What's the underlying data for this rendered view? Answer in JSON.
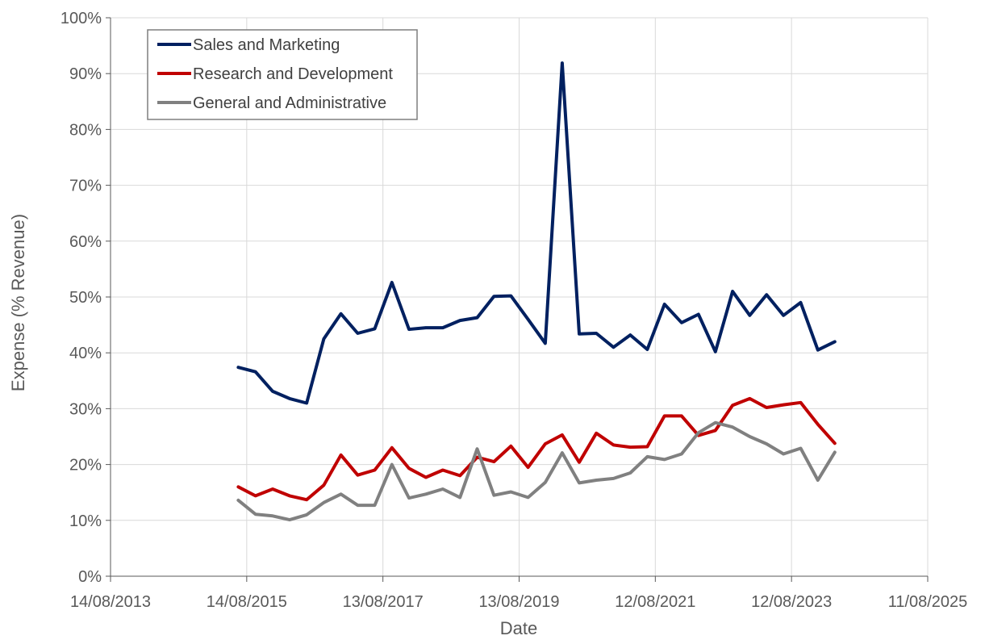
{
  "chart_data": {
    "type": "line",
    "xlabel": "Date",
    "ylabel": "Expense (% Revenue)",
    "xlim": [
      "2013-08-14",
      "2025-08-11"
    ],
    "ylim": [
      0,
      1
    ],
    "x_ticks": [
      "14/08/2013",
      "14/08/2015",
      "13/08/2017",
      "13/08/2019",
      "12/08/2021",
      "12/08/2023",
      "11/08/2025"
    ],
    "y_ticks": [
      "0%",
      "10%",
      "20%",
      "30%",
      "40%",
      "50%",
      "60%",
      "70%",
      "80%",
      "90%",
      "100%"
    ],
    "grid": true,
    "legend_position": "top-left",
    "x": [
      "2015-06-30",
      "2015-09-30",
      "2015-12-31",
      "2016-03-31",
      "2016-06-30",
      "2016-09-30",
      "2016-12-31",
      "2017-03-31",
      "2017-06-30",
      "2017-09-30",
      "2017-12-31",
      "2018-03-31",
      "2018-06-30",
      "2018-09-30",
      "2018-12-31",
      "2019-03-31",
      "2019-06-30",
      "2019-09-30",
      "2019-12-31",
      "2020-03-31",
      "2020-06-30",
      "2020-09-30",
      "2020-12-31",
      "2021-03-31",
      "2021-06-30",
      "2021-09-30",
      "2021-12-31",
      "2022-03-31",
      "2022-06-30",
      "2022-09-30",
      "2022-12-31",
      "2023-03-31",
      "2023-06-30",
      "2023-09-30",
      "2023-12-31",
      "2024-03-31"
    ],
    "series": [
      {
        "name": "Sales and Marketing",
        "color": "#002060",
        "values": [
          0.374,
          0.366,
          0.331,
          0.318,
          0.31,
          0.425,
          0.47,
          0.435,
          0.443,
          0.526,
          0.442,
          0.445,
          0.445,
          0.458,
          0.463,
          0.501,
          0.502,
          0.46,
          0.417,
          0.919,
          0.434,
          0.435,
          0.41,
          0.432,
          0.406,
          0.487,
          0.454,
          0.469,
          0.402,
          0.51,
          0.467,
          0.504,
          0.467,
          0.49,
          0.405,
          0.42
        ]
      },
      {
        "name": "Research and Development",
        "color": "#C00000",
        "values": [
          0.16,
          0.144,
          0.156,
          0.144,
          0.137,
          0.163,
          0.217,
          0.181,
          0.19,
          0.23,
          0.193,
          0.177,
          0.19,
          0.18,
          0.213,
          0.205,
          0.233,
          0.195,
          0.237,
          0.253,
          0.204,
          0.256,
          0.235,
          0.231,
          0.232,
          0.287,
          0.287,
          0.252,
          0.261,
          0.306,
          0.318,
          0.302,
          0.307,
          0.311,
          0.272,
          0.238
        ]
      },
      {
        "name": "General and Administrative",
        "color": "#808080",
        "values": [
          0.136,
          0.111,
          0.108,
          0.101,
          0.11,
          0.132,
          0.147,
          0.127,
          0.127,
          0.2,
          0.14,
          0.147,
          0.156,
          0.141,
          0.228,
          0.145,
          0.151,
          0.141,
          0.168,
          0.221,
          0.167,
          0.172,
          0.175,
          0.185,
          0.214,
          0.209,
          0.219,
          0.257,
          0.275,
          0.267,
          0.25,
          0.237,
          0.219,
          0.229,
          0.172,
          0.222
        ]
      }
    ]
  }
}
